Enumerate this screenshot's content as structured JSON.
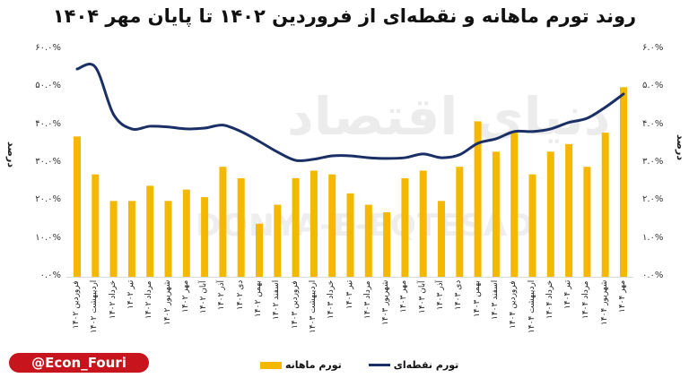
{
  "chart_data": {
    "type": "bar+line",
    "title": "روند تورم ماهانه و نقطه‌ای از فروردین ۱۴۰۲ تا پایان مهر ۱۴۰۴",
    "categories": [
      "فروردین ۱۴۰۲",
      "اردیبهشت ۱۴۰۲",
      "خرداد ۱۴۰۲",
      "تیر ۱۴۰۲",
      "مرداد ۱۴۰۲",
      "شهریور ۱۴۰۲",
      "مهر ۱۴۰۲",
      "آبان ۱۴۰۲",
      "آذر ۱۴۰۲",
      "دی ۱۴۰۲",
      "بهمن ۱۴۰۲",
      "اسفند ۱۴۰۲",
      "فروردین ۱۴۰۳",
      "اردیبهشت ۱۴۰۳",
      "خرداد ۱۴۰۳",
      "تیر ۱۴۰۳",
      "مرداد ۱۴۰۳",
      "شهریور ۱۴۰۳",
      "مهر ۱۴۰۳",
      "آبان ۱۴۰۳",
      "آذر ۱۴۰۳",
      "دی ۱۴۰۳",
      "بهمن ۱۴۰۳",
      "اسفند ۱۴۰۳",
      "فروردین ۱۴۰۴",
      "اردیبهشت ۱۴۰۴",
      "خرداد ۱۴۰۴",
      "تیر ۱۴۰۴",
      "مرداد ۱۴۰۴",
      "شهریور ۱۴۰۴",
      "مهر ۱۴۰۴"
    ],
    "series": [
      {
        "name": "تورم ماهانه",
        "type": "bar",
        "axis": "right",
        "color": "#f5b800",
        "values": [
          3.7,
          2.7,
          2.0,
          2.0,
          2.4,
          2.0,
          2.3,
          2.1,
          2.9,
          2.6,
          1.4,
          1.9,
          2.6,
          2.8,
          2.7,
          2.2,
          1.9,
          1.7,
          2.6,
          2.8,
          2.0,
          2.9,
          4.1,
          3.3,
          3.8,
          2.7,
          3.3,
          3.5,
          2.9,
          3.8,
          5.0
        ]
      },
      {
        "name": "تورم نقطه‌ای",
        "type": "line",
        "axis": "left",
        "color": "#1a2f66",
        "values": [
          54.8,
          55.3,
          42.8,
          39.0,
          39.7,
          39.5,
          39.0,
          39.2,
          40.0,
          38.3,
          35.7,
          32.9,
          30.7,
          31.0,
          31.9,
          31.9,
          31.4,
          31.2,
          31.4,
          32.4,
          31.4,
          32.2,
          35.2,
          36.4,
          38.3,
          38.3,
          39.0,
          40.7,
          41.8,
          44.7,
          48.2
        ]
      }
    ],
    "left_axis": {
      "label": "درصد",
      "ylim": [
        0,
        60
      ],
      "ticks": [
        "۰.۰%",
        "۱۰.۰%",
        "۲۰.۰%",
        "۳۰.۰%",
        "۴۰.۰%",
        "۵۰.۰%",
        "۶۰.۰%"
      ]
    },
    "right_axis": {
      "label": "درصد",
      "ylim": [
        0,
        6
      ],
      "ticks": [
        "۰.۰%",
        "۱.۰%",
        "۲.۰%",
        "۳.۰%",
        "۴.۰%",
        "۵.۰%",
        "۶.۰%"
      ]
    },
    "grid": false,
    "legend_position": "bottom"
  },
  "legend": {
    "line_label": "تورم نقطه‌ای",
    "bar_label": "تورم ماهانه"
  },
  "watermark": {
    "latin": "DONYA-E-EQTESAD",
    "persian": "دنیای اقتصاد"
  },
  "handle": "@Econ_Fouri",
  "colors": {
    "bar": "#f5b800",
    "line": "#1a2f66",
    "handle_bg": "#c8141c"
  }
}
